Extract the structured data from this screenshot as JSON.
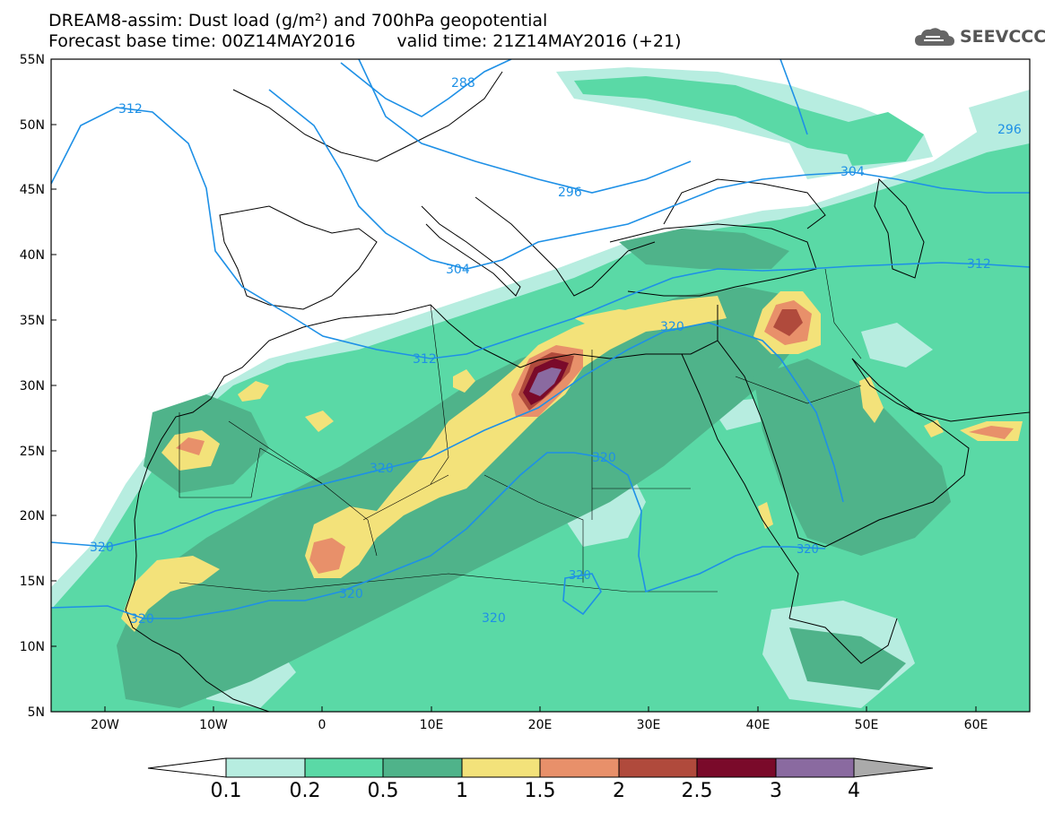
{
  "header": {
    "line1": "DREAM8-assim: Dust load (g/m²) and 700hPa geopotential",
    "line2_left": "Forecast base time: 00Z14MAY2016",
    "line2_right": "valid time: 21Z14MAY2016 (+21)"
  },
  "logo": {
    "text": "SEEVCCC",
    "icon": "cloud-logo-icon"
  },
  "map": {
    "extent": {
      "lon": [
        -25,
        65
      ],
      "lat": [
        5,
        55
      ]
    },
    "lat_ticks": [
      "55N",
      "50N",
      "45N",
      "40N",
      "35N",
      "30N",
      "25N",
      "20N",
      "15N",
      "10N",
      "5N"
    ],
    "lon_ticks": [
      "20W",
      "10W",
      "0",
      "10E",
      "20E",
      "30E",
      "40E",
      "50E",
      "60E"
    ],
    "contour_color": "#1e90e6",
    "contour_labels": [
      "288",
      "296",
      "304",
      "312",
      "312",
      "312",
      "320",
      "320",
      "320",
      "320",
      "320",
      "320",
      "320",
      "296",
      "304"
    ]
  },
  "colorbar": {
    "levels": [
      "0.1",
      "0.2",
      "0.5",
      "1",
      "1.5",
      "2",
      "2.5",
      "3",
      "4"
    ],
    "colors": [
      "#ffffff",
      "#b7ede0",
      "#5ad9a6",
      "#4fb38a",
      "#f3e27a",
      "#e8906a",
      "#b04a3c",
      "#7a0a2a",
      "#8a6aa0",
      "#aaaaaa"
    ]
  }
}
